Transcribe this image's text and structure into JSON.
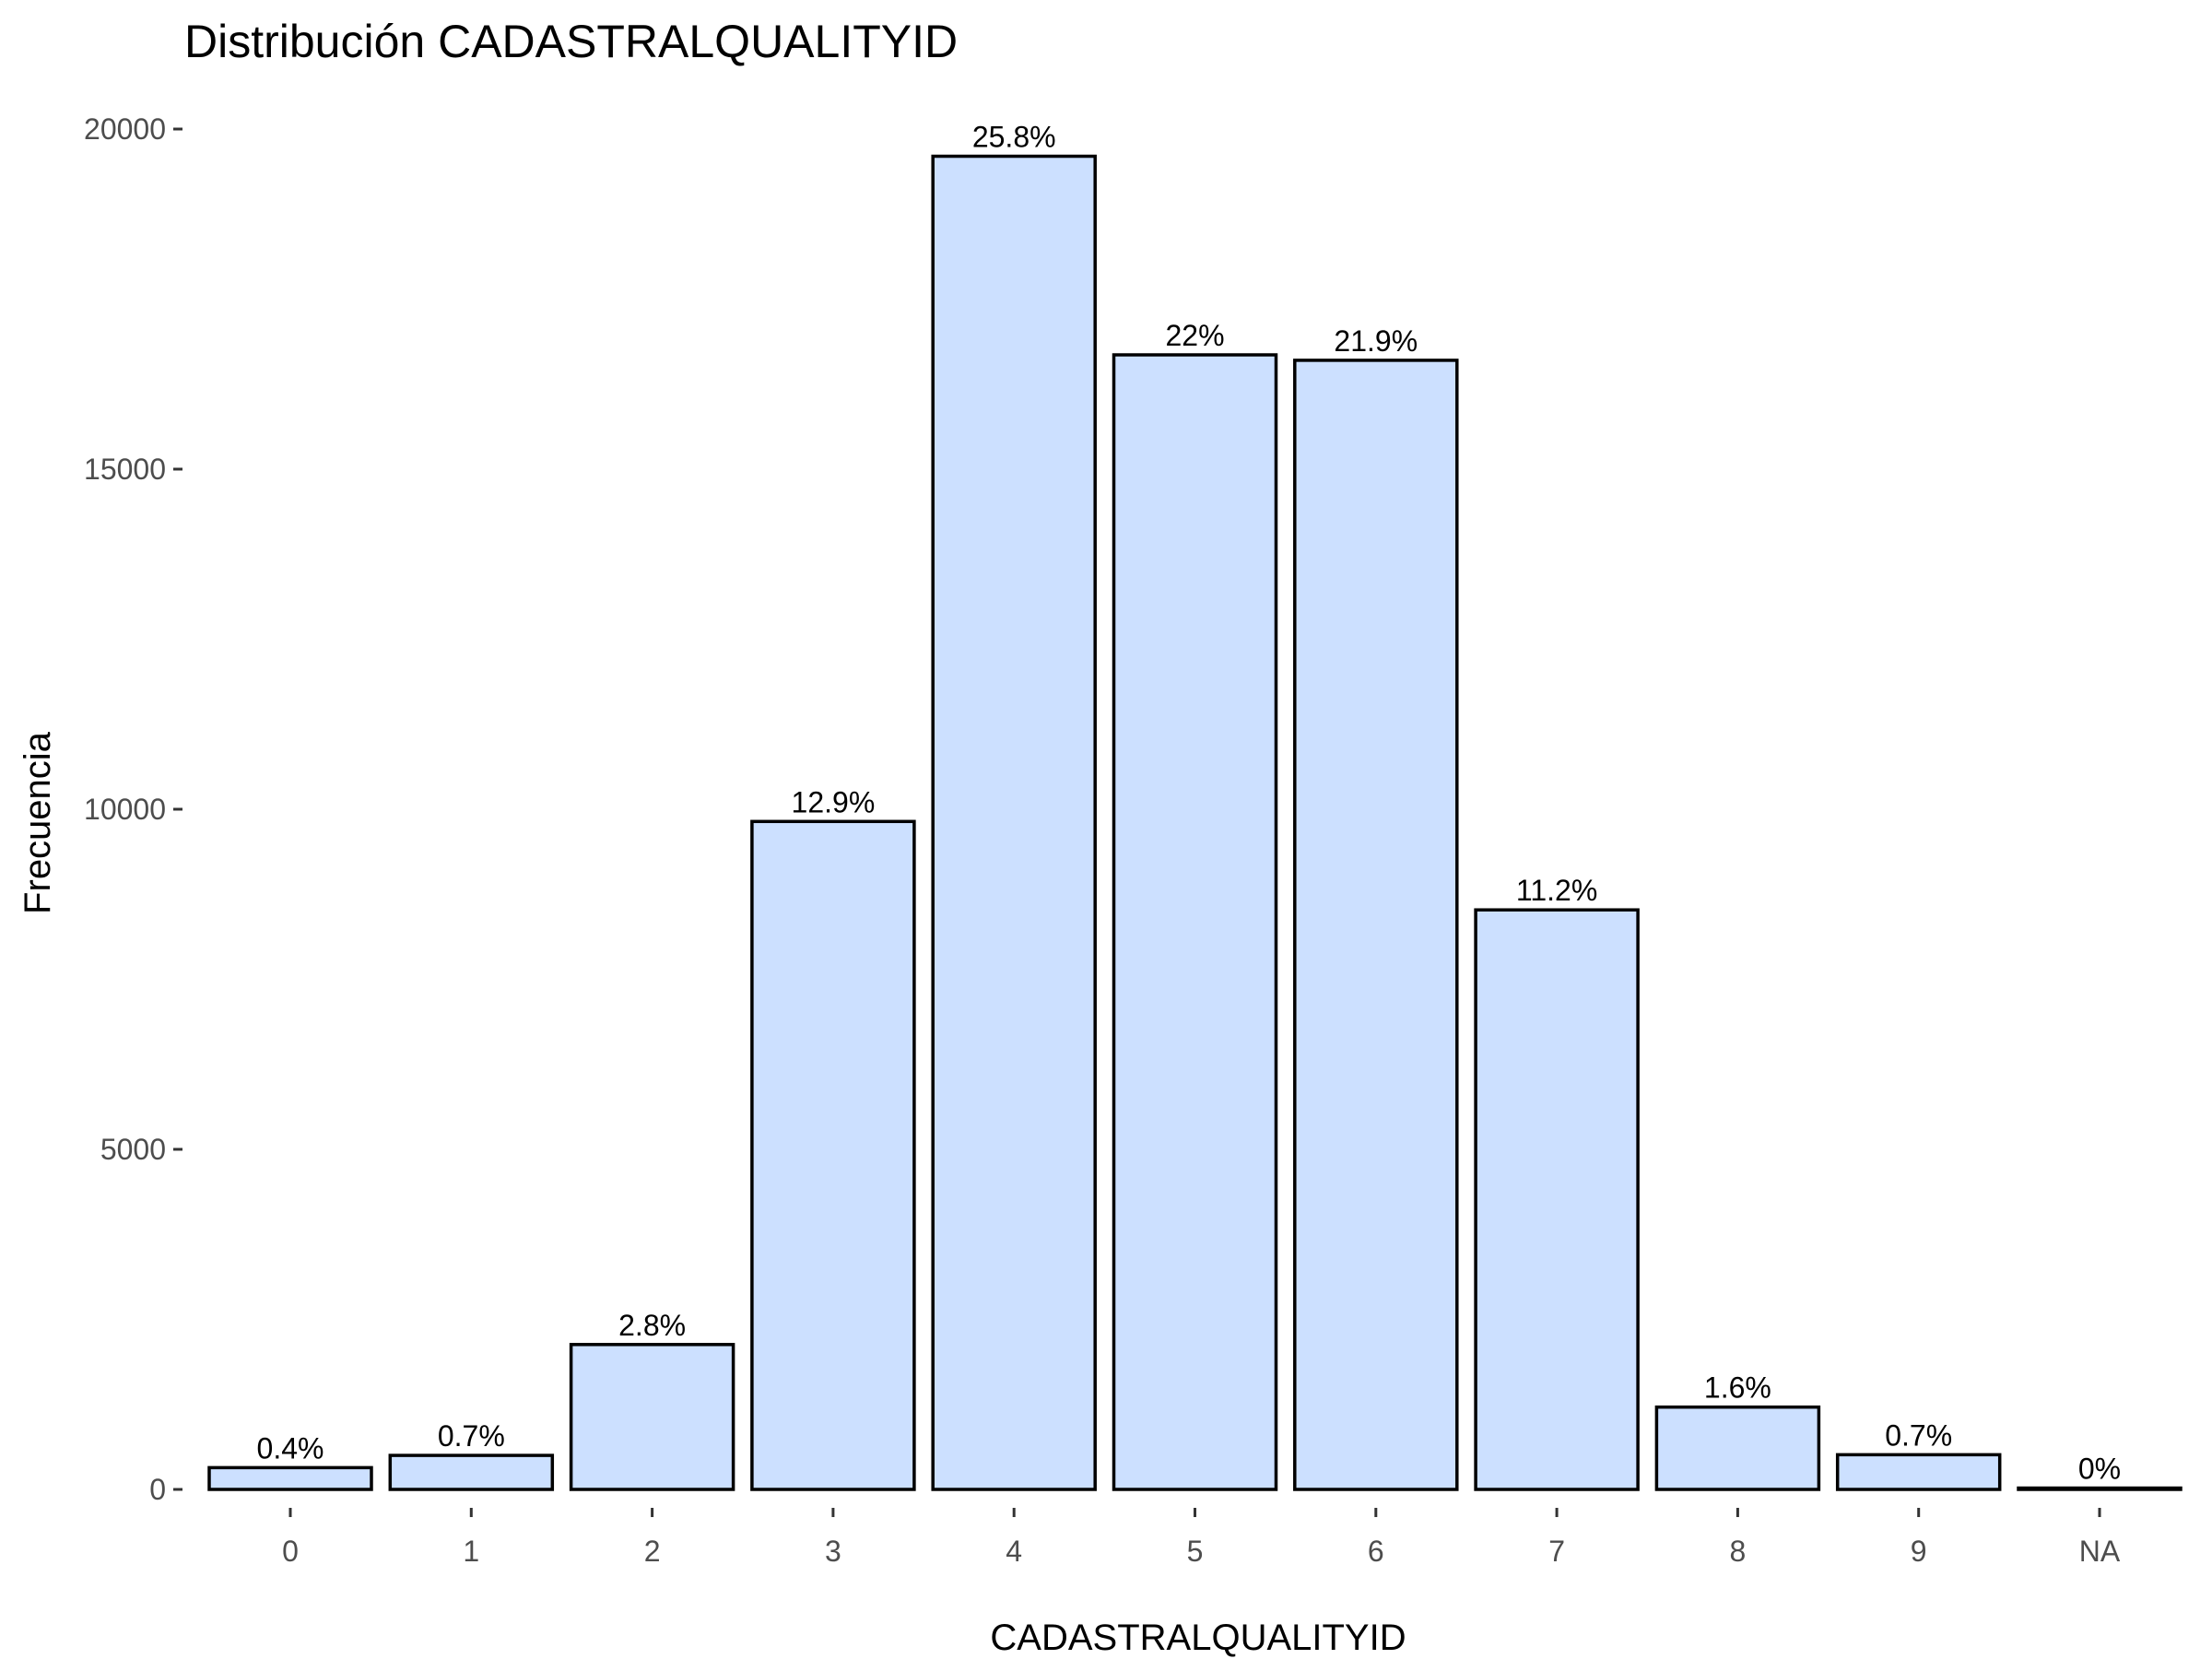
{
  "chart_data": {
    "type": "bar",
    "title": "Distribución CADASTRALQUALITYID",
    "xlabel": "CADASTRALQUALITYID",
    "ylabel": "Frecuencia",
    "categories": [
      "0",
      "1",
      "2",
      "3",
      "4",
      "5",
      "6",
      "7",
      "8",
      "9",
      "NA"
    ],
    "values": [
      320,
      500,
      2130,
      9820,
      19600,
      16680,
      16600,
      8520,
      1210,
      510,
      20
    ],
    "data_labels": [
      "0.4%",
      "0.7%",
      "2.8%",
      "12.9%",
      "25.8%",
      "22%",
      "21.9%",
      "11.2%",
      "1.6%",
      "0.7%",
      "0%"
    ],
    "y_ticks": [
      0,
      5000,
      10000,
      15000,
      20000
    ],
    "y_tick_labels": [
      "0",
      "5000",
      "10000",
      "15000",
      "20000"
    ],
    "ylim": [
      0,
      20000
    ],
    "grid": false,
    "legend": "none",
    "colors": {
      "bar_fill": "#cce0ff",
      "bar_outline": "#000000"
    }
  }
}
